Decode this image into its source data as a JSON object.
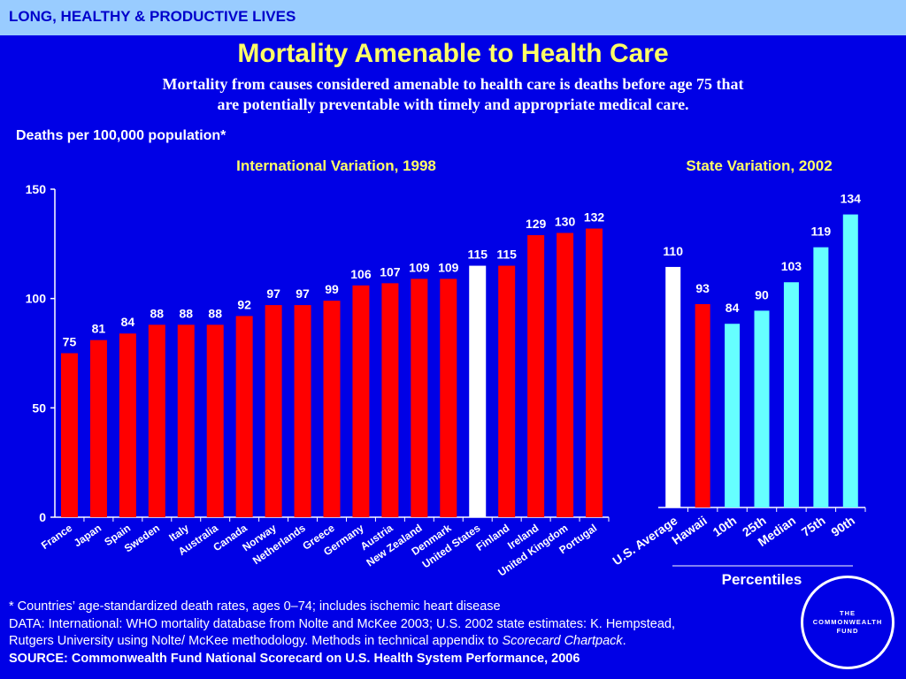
{
  "header": {
    "section": "LONG, HEALTHY & PRODUCTIVE LIVES"
  },
  "title": "Mortality Amenable to Health Care",
  "subtitle_line1": "Mortality from causes considered amenable to health care is deaths before age 75 that",
  "subtitle_line2": "are potentially preventable with timely and appropriate medical care.",
  "ylabel": "Deaths per 100,000 population*",
  "chart_data": [
    {
      "type": "bar",
      "title": "International Variation, 1998",
      "ylim": [
        0,
        150
      ],
      "yticks": [
        0,
        50,
        100,
        150
      ],
      "categories": [
        "France",
        "Japan",
        "Spain",
        "Sweden",
        "Italy",
        "Australia",
        "Canada",
        "Norway",
        "Netherlands",
        "Greece",
        "Germany",
        "Austria",
        "New Zealand",
        "Denmark",
        "United States",
        "Finland",
        "Ireland",
        "United Kingdom",
        "Portugal"
      ],
      "values": [
        75,
        81,
        84,
        88,
        88,
        88,
        92,
        97,
        97,
        99,
        106,
        107,
        109,
        109,
        115,
        115,
        129,
        130,
        132
      ],
      "highlight": "United States",
      "colors": {
        "bar": "#ff0000",
        "highlight": "#ffffff"
      }
    },
    {
      "type": "bar",
      "title": "State Variation, 2002",
      "ylim": [
        0,
        150
      ],
      "categories": [
        "U.S. Average",
        "Hawaii",
        "10th",
        "25th",
        "Median",
        "75th",
        "90th"
      ],
      "values": [
        110,
        93,
        84,
        90,
        103,
        119,
        134
      ],
      "bar_colors": [
        "#ffffff",
        "#ff0000",
        "#66ffff",
        "#66ffff",
        "#66ffff",
        "#66ffff",
        "#66ffff"
      ],
      "group_label": "Percentiles"
    }
  ],
  "footer": {
    "note": "* Countries’ age-standardized death rates, ages 0–74; includes ischemic heart disease",
    "data1": "DATA: International: WHO mortality database from Nolte and McKee 2003;  U.S. 2002 state estimates: K. Hempstead,",
    "data2_prefix": "Rutgers University using Nolte/ McKee methodology. Methods in technical appendix to ",
    "data2_italic": "Scorecard Chartpack",
    "data2_suffix": ".",
    "source": "SOURCE: Commonwealth Fund National Scorecard on U.S. Health System Performance, 2006"
  },
  "logo": {
    "text": "THE\nCOMMONWEALTH\nFUND"
  }
}
